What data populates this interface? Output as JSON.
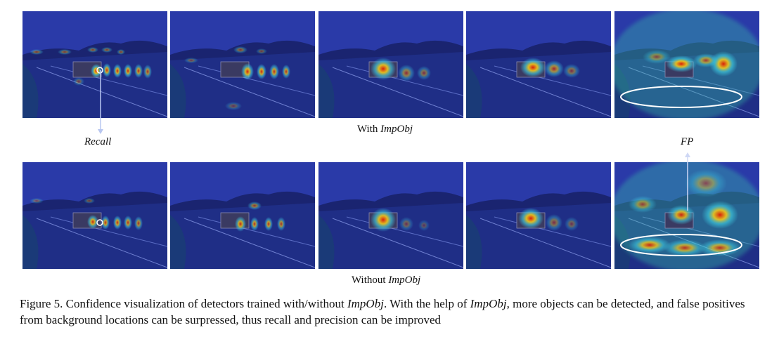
{
  "labels": {
    "recall": "Recall",
    "fp": "FP"
  },
  "row_captions": {
    "with_prefix": "With ",
    "with_method": "ImpObj",
    "without_prefix": "Without ",
    "without_method": "ImpObj"
  },
  "figure_caption": {
    "part1": "Figure 5. Confidence visualization of detectors trained with/without ",
    "method1": "ImpObj",
    "part2": ". With the help of ",
    "method2": "ImpObj",
    "part3": ", more objects can be detected, and false positives from background locations can be surpressed, thus recall and precision can be improved"
  },
  "colors": {
    "sky": "#2a3aa8",
    "hill": "#1a2470",
    "heat_hot": "#d81e0a",
    "heat_warm": "#f2c81a",
    "heat_cool": "#3fd2e6",
    "ring": "#ffffff"
  }
}
